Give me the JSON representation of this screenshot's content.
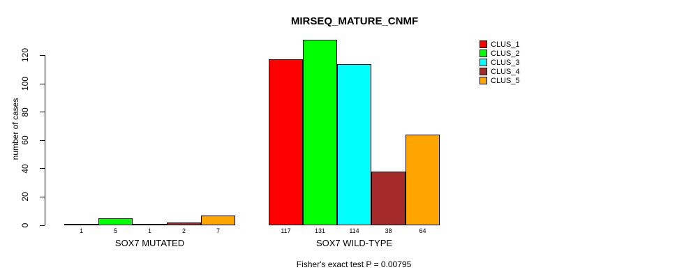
{
  "chart_data": {
    "type": "bar",
    "title": "MIRSEQ_MATURE_CNMF",
    "ylabel": "number of cases",
    "xlabel": "",
    "ylim": [
      0,
      131
    ],
    "yticks": [
      0,
      20,
      40,
      60,
      80,
      100,
      120
    ],
    "grid": false,
    "legend_position": "top-right",
    "groups": [
      {
        "label": "SOX7 MUTATED",
        "values": [
          1,
          5,
          1,
          2,
          7
        ]
      },
      {
        "label": "SOX7 WILD-TYPE",
        "values": [
          117,
          131,
          114,
          38,
          64
        ]
      }
    ],
    "series": [
      {
        "name": "CLUS_1",
        "color": "#FF0000",
        "values": [
          1,
          117
        ]
      },
      {
        "name": "CLUS_2",
        "color": "#00FF00",
        "values": [
          5,
          131
        ]
      },
      {
        "name": "CLUS_3",
        "color": "#00FFFF",
        "values": [
          1,
          114
        ]
      },
      {
        "name": "CLUS_4",
        "color": "#A52A2A",
        "values": [
          2,
          38
        ]
      },
      {
        "name": "CLUS_5",
        "color": "#FFA500",
        "values": [
          7,
          64
        ]
      }
    ],
    "annotation": "Fisher's exact test P = 0.00795"
  }
}
